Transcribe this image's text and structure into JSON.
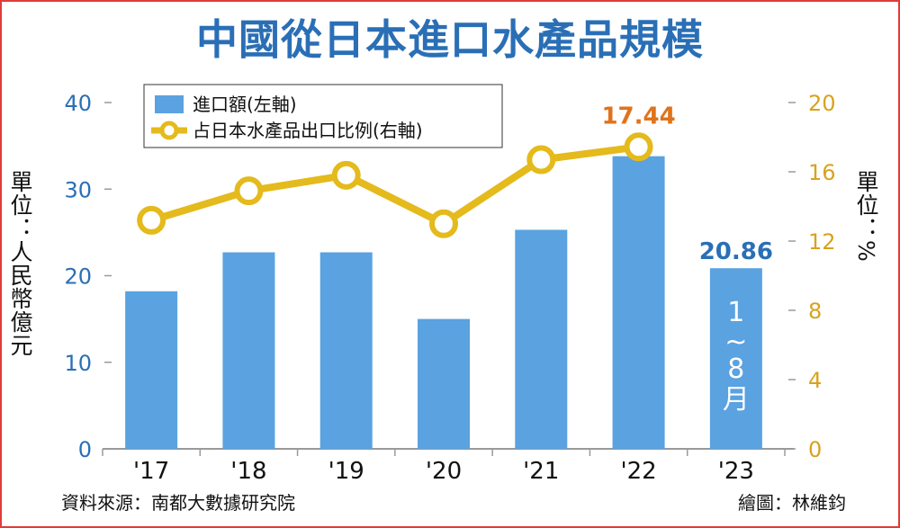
{
  "title": "中國從日本進口水產品規模",
  "left_unit_label": "單位：人民幣億元",
  "right_unit_label": "單位：%",
  "source": "資料來源：南都大數據研究院",
  "credit": "繪圖：林維鈞",
  "colors": {
    "bar": "#5aa2e0",
    "line": "#e4ba1c",
    "bar_label": "#2a6fb6",
    "line_label": "#e0731a"
  },
  "chart_data": {
    "type": "bar",
    "categories": [
      "'17",
      "'18",
      "'19",
      "'20",
      "'21",
      "'22",
      "'23"
    ],
    "series": [
      {
        "name": "進口額(左軸)",
        "type": "bar",
        "axis": "left",
        "values": [
          18.2,
          22.7,
          22.7,
          15.0,
          25.3,
          33.8,
          20.86
        ]
      },
      {
        "name": "占日本水產品出口比例(右軸)",
        "type": "line",
        "axis": "right",
        "values": [
          13.2,
          14.9,
          15.8,
          13.0,
          16.7,
          17.44,
          null
        ]
      }
    ],
    "ylim_left": [
      0,
      40
    ],
    "yticks_left": [
      0,
      10,
      20,
      30,
      40
    ],
    "ylim_right": [
      0,
      20
    ],
    "yticks_right": [
      0,
      4,
      8,
      12,
      16,
      20
    ],
    "annotations": [
      {
        "category": "'22",
        "series": 1,
        "text": "17.44"
      },
      {
        "category": "'23",
        "series": 0,
        "text": "20.86"
      }
    ],
    "bar_note": {
      "category": "'23",
      "lines": [
        "1",
        "~",
        "8",
        "月"
      ]
    },
    "legend_position": "top-left"
  }
}
